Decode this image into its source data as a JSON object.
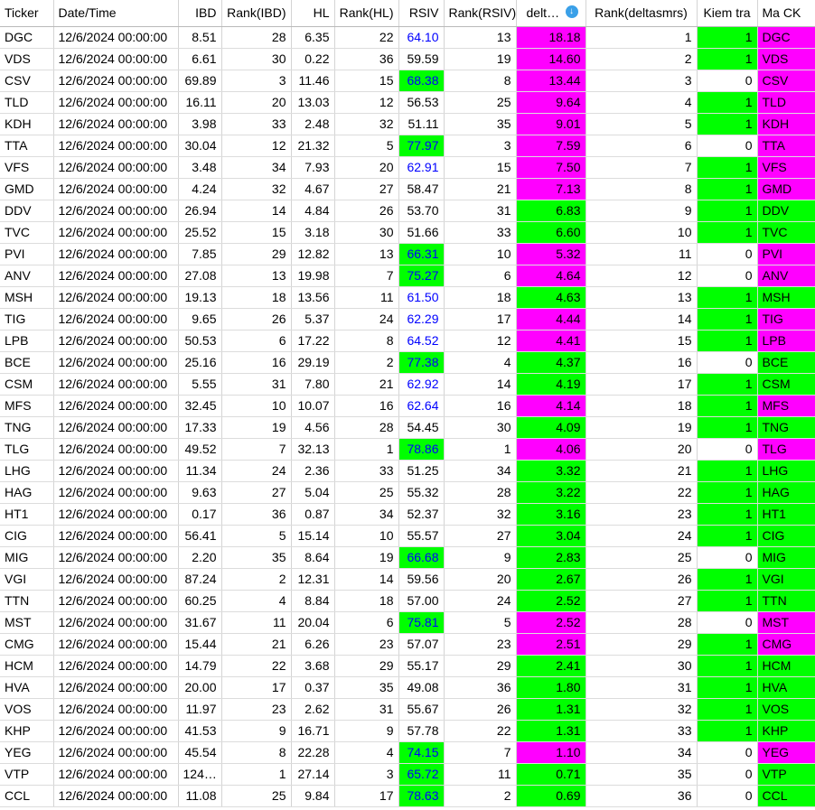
{
  "colors": {
    "magenta": "#ff00ff",
    "green": "#00ff00",
    "blue_text": "#0000ff",
    "white": "#ffffff"
  },
  "columns": [
    "Ticker",
    "Date/Time",
    "IBD",
    "Rank(IBD)",
    "HL",
    "Rank(HL)",
    "RSIV",
    "Rank(RSIV)",
    "delt…",
    "Rank(deltasmrs)",
    "Kiem tra",
    "Ma CK"
  ],
  "sort_icon": "sort-descending-icon",
  "rows": [
    {
      "ticker": "DGC",
      "dt": "12/6/2024 00:00:00",
      "ibd": "8.51",
      "rank_ibd": "28",
      "hl": "6.35",
      "rank_hl": "22",
      "rsiv": "64.10",
      "rsiv_fmt": "blue",
      "rank_rsiv": "13",
      "delta": "18.18",
      "delta_bg": "magenta",
      "rank_delta": "1",
      "kiem": "1",
      "kiem_bg": "green",
      "mack": "DGC",
      "mack_bg": "magenta"
    },
    {
      "ticker": "VDS",
      "dt": "12/6/2024 00:00:00",
      "ibd": "6.61",
      "rank_ibd": "30",
      "hl": "0.22",
      "rank_hl": "36",
      "rsiv": "59.59",
      "rsiv_fmt": "plain",
      "rank_rsiv": "19",
      "delta": "14.60",
      "delta_bg": "magenta",
      "rank_delta": "2",
      "kiem": "1",
      "kiem_bg": "green",
      "mack": "VDS",
      "mack_bg": "magenta"
    },
    {
      "ticker": "CSV",
      "dt": "12/6/2024 00:00:00",
      "ibd": "69.89",
      "rank_ibd": "3",
      "hl": "11.46",
      "rank_hl": "15",
      "rsiv": "68.38",
      "rsiv_fmt": "green",
      "rank_rsiv": "8",
      "delta": "13.44",
      "delta_bg": "magenta",
      "rank_delta": "3",
      "kiem": "0",
      "kiem_bg": "white",
      "mack": "CSV",
      "mack_bg": "magenta"
    },
    {
      "ticker": "TLD",
      "dt": "12/6/2024 00:00:00",
      "ibd": "16.11",
      "rank_ibd": "20",
      "hl": "13.03",
      "rank_hl": "12",
      "rsiv": "56.53",
      "rsiv_fmt": "plain",
      "rank_rsiv": "25",
      "delta": "9.64",
      "delta_bg": "magenta",
      "rank_delta": "4",
      "kiem": "1",
      "kiem_bg": "green",
      "mack": "TLD",
      "mack_bg": "magenta"
    },
    {
      "ticker": "KDH",
      "dt": "12/6/2024 00:00:00",
      "ibd": "3.98",
      "rank_ibd": "33",
      "hl": "2.48",
      "rank_hl": "32",
      "rsiv": "51.11",
      "rsiv_fmt": "plain",
      "rank_rsiv": "35",
      "delta": "9.01",
      "delta_bg": "magenta",
      "rank_delta": "5",
      "kiem": "1",
      "kiem_bg": "green",
      "mack": "KDH",
      "mack_bg": "magenta"
    },
    {
      "ticker": "TTA",
      "dt": "12/6/2024 00:00:00",
      "ibd": "30.04",
      "rank_ibd": "12",
      "hl": "21.32",
      "rank_hl": "5",
      "rsiv": "77.97",
      "rsiv_fmt": "green",
      "rank_rsiv": "3",
      "delta": "7.59",
      "delta_bg": "magenta",
      "rank_delta": "6",
      "kiem": "0",
      "kiem_bg": "white",
      "mack": "TTA",
      "mack_bg": "magenta"
    },
    {
      "ticker": "VFS",
      "dt": "12/6/2024 00:00:00",
      "ibd": "3.48",
      "rank_ibd": "34",
      "hl": "7.93",
      "rank_hl": "20",
      "rsiv": "62.91",
      "rsiv_fmt": "blue",
      "rank_rsiv": "15",
      "delta": "7.50",
      "delta_bg": "magenta",
      "rank_delta": "7",
      "kiem": "1",
      "kiem_bg": "green",
      "mack": "VFS",
      "mack_bg": "magenta"
    },
    {
      "ticker": "GMD",
      "dt": "12/6/2024 00:00:00",
      "ibd": "4.24",
      "rank_ibd": "32",
      "hl": "4.67",
      "rank_hl": "27",
      "rsiv": "58.47",
      "rsiv_fmt": "plain",
      "rank_rsiv": "21",
      "delta": "7.13",
      "delta_bg": "magenta",
      "rank_delta": "8",
      "kiem": "1",
      "kiem_bg": "green",
      "mack": "GMD",
      "mack_bg": "magenta"
    },
    {
      "ticker": "DDV",
      "dt": "12/6/2024 00:00:00",
      "ibd": "26.94",
      "rank_ibd": "14",
      "hl": "4.84",
      "rank_hl": "26",
      "rsiv": "53.70",
      "rsiv_fmt": "plain",
      "rank_rsiv": "31",
      "delta": "6.83",
      "delta_bg": "green",
      "rank_delta": "9",
      "kiem": "1",
      "kiem_bg": "green",
      "mack": "DDV",
      "mack_bg": "green"
    },
    {
      "ticker": "TVC",
      "dt": "12/6/2024 00:00:00",
      "ibd": "25.52",
      "rank_ibd": "15",
      "hl": "3.18",
      "rank_hl": "30",
      "rsiv": "51.66",
      "rsiv_fmt": "plain",
      "rank_rsiv": "33",
      "delta": "6.60",
      "delta_bg": "green",
      "rank_delta": "10",
      "kiem": "1",
      "kiem_bg": "green",
      "mack": "TVC",
      "mack_bg": "green"
    },
    {
      "ticker": "PVI",
      "dt": "12/6/2024 00:00:00",
      "ibd": "7.85",
      "rank_ibd": "29",
      "hl": "12.82",
      "rank_hl": "13",
      "rsiv": "66.31",
      "rsiv_fmt": "green",
      "rank_rsiv": "10",
      "delta": "5.32",
      "delta_bg": "magenta",
      "rank_delta": "11",
      "kiem": "0",
      "kiem_bg": "white",
      "mack": "PVI",
      "mack_bg": "magenta"
    },
    {
      "ticker": "ANV",
      "dt": "12/6/2024 00:00:00",
      "ibd": "27.08",
      "rank_ibd": "13",
      "hl": "19.98",
      "rank_hl": "7",
      "rsiv": "75.27",
      "rsiv_fmt": "green",
      "rank_rsiv": "6",
      "delta": "4.64",
      "delta_bg": "magenta",
      "rank_delta": "12",
      "kiem": "0",
      "kiem_bg": "white",
      "mack": "ANV",
      "mack_bg": "magenta"
    },
    {
      "ticker": "MSH",
      "dt": "12/6/2024 00:00:00",
      "ibd": "19.13",
      "rank_ibd": "18",
      "hl": "13.56",
      "rank_hl": "11",
      "rsiv": "61.50",
      "rsiv_fmt": "blue",
      "rank_rsiv": "18",
      "delta": "4.63",
      "delta_bg": "green",
      "rank_delta": "13",
      "kiem": "1",
      "kiem_bg": "green",
      "mack": "MSH",
      "mack_bg": "green"
    },
    {
      "ticker": "TIG",
      "dt": "12/6/2024 00:00:00",
      "ibd": "9.65",
      "rank_ibd": "26",
      "hl": "5.37",
      "rank_hl": "24",
      "rsiv": "62.29",
      "rsiv_fmt": "blue",
      "rank_rsiv": "17",
      "delta": "4.44",
      "delta_bg": "magenta",
      "rank_delta": "14",
      "kiem": "1",
      "kiem_bg": "green",
      "mack": "TIG",
      "mack_bg": "magenta"
    },
    {
      "ticker": "LPB",
      "dt": "12/6/2024 00:00:00",
      "ibd": "50.53",
      "rank_ibd": "6",
      "hl": "17.22",
      "rank_hl": "8",
      "rsiv": "64.52",
      "rsiv_fmt": "blue",
      "rank_rsiv": "12",
      "delta": "4.41",
      "delta_bg": "magenta",
      "rank_delta": "15",
      "kiem": "1",
      "kiem_bg": "green",
      "mack": "LPB",
      "mack_bg": "magenta"
    },
    {
      "ticker": "BCE",
      "dt": "12/6/2024 00:00:00",
      "ibd": "25.16",
      "rank_ibd": "16",
      "hl": "29.19",
      "rank_hl": "2",
      "rsiv": "77.38",
      "rsiv_fmt": "green",
      "rank_rsiv": "4",
      "delta": "4.37",
      "delta_bg": "green",
      "rank_delta": "16",
      "kiem": "0",
      "kiem_bg": "white",
      "mack": "BCE",
      "mack_bg": "green"
    },
    {
      "ticker": "CSM",
      "dt": "12/6/2024 00:00:00",
      "ibd": "5.55",
      "rank_ibd": "31",
      "hl": "7.80",
      "rank_hl": "21",
      "rsiv": "62.92",
      "rsiv_fmt": "blue",
      "rank_rsiv": "14",
      "delta": "4.19",
      "delta_bg": "green",
      "rank_delta": "17",
      "kiem": "1",
      "kiem_bg": "green",
      "mack": "CSM",
      "mack_bg": "green"
    },
    {
      "ticker": "MFS",
      "dt": "12/6/2024 00:00:00",
      "ibd": "32.45",
      "rank_ibd": "10",
      "hl": "10.07",
      "rank_hl": "16",
      "rsiv": "62.64",
      "rsiv_fmt": "blue",
      "rank_rsiv": "16",
      "delta": "4.14",
      "delta_bg": "magenta",
      "rank_delta": "18",
      "kiem": "1",
      "kiem_bg": "green",
      "mack": "MFS",
      "mack_bg": "magenta"
    },
    {
      "ticker": "TNG",
      "dt": "12/6/2024 00:00:00",
      "ibd": "17.33",
      "rank_ibd": "19",
      "hl": "4.56",
      "rank_hl": "28",
      "rsiv": "54.45",
      "rsiv_fmt": "plain",
      "rank_rsiv": "30",
      "delta": "4.09",
      "delta_bg": "green",
      "rank_delta": "19",
      "kiem": "1",
      "kiem_bg": "green",
      "mack": "TNG",
      "mack_bg": "green"
    },
    {
      "ticker": "TLG",
      "dt": "12/6/2024 00:00:00",
      "ibd": "49.52",
      "rank_ibd": "7",
      "hl": "32.13",
      "rank_hl": "1",
      "rsiv": "78.86",
      "rsiv_fmt": "green",
      "rank_rsiv": "1",
      "delta": "4.06",
      "delta_bg": "magenta",
      "rank_delta": "20",
      "kiem": "0",
      "kiem_bg": "white",
      "mack": "TLG",
      "mack_bg": "magenta"
    },
    {
      "ticker": "LHG",
      "dt": "12/6/2024 00:00:00",
      "ibd": "11.34",
      "rank_ibd": "24",
      "hl": "2.36",
      "rank_hl": "33",
      "rsiv": "51.25",
      "rsiv_fmt": "plain",
      "rank_rsiv": "34",
      "delta": "3.32",
      "delta_bg": "green",
      "rank_delta": "21",
      "kiem": "1",
      "kiem_bg": "green",
      "mack": "LHG",
      "mack_bg": "green"
    },
    {
      "ticker": "HAG",
      "dt": "12/6/2024 00:00:00",
      "ibd": "9.63",
      "rank_ibd": "27",
      "hl": "5.04",
      "rank_hl": "25",
      "rsiv": "55.32",
      "rsiv_fmt": "plain",
      "rank_rsiv": "28",
      "delta": "3.22",
      "delta_bg": "green",
      "rank_delta": "22",
      "kiem": "1",
      "kiem_bg": "green",
      "mack": "HAG",
      "mack_bg": "green"
    },
    {
      "ticker": "HT1",
      "dt": "12/6/2024 00:00:00",
      "ibd": "0.17",
      "rank_ibd": "36",
      "hl": "0.87",
      "rank_hl": "34",
      "rsiv": "52.37",
      "rsiv_fmt": "plain",
      "rank_rsiv": "32",
      "delta": "3.16",
      "delta_bg": "green",
      "rank_delta": "23",
      "kiem": "1",
      "kiem_bg": "green",
      "mack": "HT1",
      "mack_bg": "green"
    },
    {
      "ticker": "CIG",
      "dt": "12/6/2024 00:00:00",
      "ibd": "56.41",
      "rank_ibd": "5",
      "hl": "15.14",
      "rank_hl": "10",
      "rsiv": "55.57",
      "rsiv_fmt": "plain",
      "rank_rsiv": "27",
      "delta": "3.04",
      "delta_bg": "green",
      "rank_delta": "24",
      "kiem": "1",
      "kiem_bg": "green",
      "mack": "CIG",
      "mack_bg": "green"
    },
    {
      "ticker": "MIG",
      "dt": "12/6/2024 00:00:00",
      "ibd": "2.20",
      "rank_ibd": "35",
      "hl": "8.64",
      "rank_hl": "19",
      "rsiv": "66.68",
      "rsiv_fmt": "green",
      "rank_rsiv": "9",
      "delta": "2.83",
      "delta_bg": "green",
      "rank_delta": "25",
      "kiem": "0",
      "kiem_bg": "white",
      "mack": "MIG",
      "mack_bg": "green"
    },
    {
      "ticker": "VGI",
      "dt": "12/6/2024 00:00:00",
      "ibd": "87.24",
      "rank_ibd": "2",
      "hl": "12.31",
      "rank_hl": "14",
      "rsiv": "59.56",
      "rsiv_fmt": "plain",
      "rank_rsiv": "20",
      "delta": "2.67",
      "delta_bg": "green",
      "rank_delta": "26",
      "kiem": "1",
      "kiem_bg": "green",
      "mack": "VGI",
      "mack_bg": "green"
    },
    {
      "ticker": "TTN",
      "dt": "12/6/2024 00:00:00",
      "ibd": "60.25",
      "rank_ibd": "4",
      "hl": "8.84",
      "rank_hl": "18",
      "rsiv": "57.00",
      "rsiv_fmt": "plain",
      "rank_rsiv": "24",
      "delta": "2.52",
      "delta_bg": "green",
      "rank_delta": "27",
      "kiem": "1",
      "kiem_bg": "green",
      "mack": "TTN",
      "mack_bg": "green"
    },
    {
      "ticker": "MST",
      "dt": "12/6/2024 00:00:00",
      "ibd": "31.67",
      "rank_ibd": "11",
      "hl": "20.04",
      "rank_hl": "6",
      "rsiv": "75.81",
      "rsiv_fmt": "green",
      "rank_rsiv": "5",
      "delta": "2.52",
      "delta_bg": "magenta",
      "rank_delta": "28",
      "kiem": "0",
      "kiem_bg": "white",
      "mack": "MST",
      "mack_bg": "magenta"
    },
    {
      "ticker": "CMG",
      "dt": "12/6/2024 00:00:00",
      "ibd": "15.44",
      "rank_ibd": "21",
      "hl": "6.26",
      "rank_hl": "23",
      "rsiv": "57.07",
      "rsiv_fmt": "plain",
      "rank_rsiv": "23",
      "delta": "2.51",
      "delta_bg": "magenta",
      "rank_delta": "29",
      "kiem": "1",
      "kiem_bg": "green",
      "mack": "CMG",
      "mack_bg": "magenta"
    },
    {
      "ticker": "HCM",
      "dt": "12/6/2024 00:00:00",
      "ibd": "14.79",
      "rank_ibd": "22",
      "hl": "3.68",
      "rank_hl": "29",
      "rsiv": "55.17",
      "rsiv_fmt": "plain",
      "rank_rsiv": "29",
      "delta": "2.41",
      "delta_bg": "green",
      "rank_delta": "30",
      "kiem": "1",
      "kiem_bg": "green",
      "mack": "HCM",
      "mack_bg": "green"
    },
    {
      "ticker": "HVA",
      "dt": "12/6/2024 00:00:00",
      "ibd": "20.00",
      "rank_ibd": "17",
      "hl": "0.37",
      "rank_hl": "35",
      "rsiv": "49.08",
      "rsiv_fmt": "plain",
      "rank_rsiv": "36",
      "delta": "1.80",
      "delta_bg": "green",
      "rank_delta": "31",
      "kiem": "1",
      "kiem_bg": "green",
      "mack": "HVA",
      "mack_bg": "green"
    },
    {
      "ticker": "VOS",
      "dt": "12/6/2024 00:00:00",
      "ibd": "11.97",
      "rank_ibd": "23",
      "hl": "2.62",
      "rank_hl": "31",
      "rsiv": "55.67",
      "rsiv_fmt": "plain",
      "rank_rsiv": "26",
      "delta": "1.31",
      "delta_bg": "green",
      "rank_delta": "32",
      "kiem": "1",
      "kiem_bg": "green",
      "mack": "VOS",
      "mack_bg": "green"
    },
    {
      "ticker": "KHP",
      "dt": "12/6/2024 00:00:00",
      "ibd": "41.53",
      "rank_ibd": "9",
      "hl": "16.71",
      "rank_hl": "9",
      "rsiv": "57.78",
      "rank_rsiv": "22",
      "rsiv_fmt": "plain",
      "delta": "1.31",
      "delta_bg": "green",
      "rank_delta": "33",
      "kiem": "1",
      "kiem_bg": "green",
      "mack": "KHP",
      "mack_bg": "green"
    },
    {
      "ticker": "YEG",
      "dt": "12/6/2024 00:00:00",
      "ibd": "45.54",
      "rank_ibd": "8",
      "hl": "22.28",
      "rank_hl": "4",
      "rsiv": "74.15",
      "rsiv_fmt": "green",
      "rank_rsiv": "7",
      "delta": "1.10",
      "delta_bg": "magenta",
      "rank_delta": "34",
      "kiem": "0",
      "kiem_bg": "white",
      "mack": "YEG",
      "mack_bg": "magenta"
    },
    {
      "ticker": "VTP",
      "dt": "12/6/2024 00:00:00",
      "ibd": "124…",
      "rank_ibd": "1",
      "hl": "27.14",
      "rank_hl": "3",
      "rsiv": "65.72",
      "rsiv_fmt": "green",
      "rank_rsiv": "11",
      "delta": "0.71",
      "delta_bg": "green",
      "rank_delta": "35",
      "kiem": "0",
      "kiem_bg": "white",
      "mack": "VTP",
      "mack_bg": "green"
    },
    {
      "ticker": "CCL",
      "dt": "12/6/2024 00:00:00",
      "ibd": "11.08",
      "rank_ibd": "25",
      "hl": "9.84",
      "rank_hl": "17",
      "rsiv": "78.63",
      "rsiv_fmt": "green",
      "rank_rsiv": "2",
      "delta": "0.69",
      "delta_bg": "green",
      "rank_delta": "36",
      "kiem": "0",
      "kiem_bg": "white",
      "mack": "CCL",
      "mack_bg": "green"
    }
  ]
}
